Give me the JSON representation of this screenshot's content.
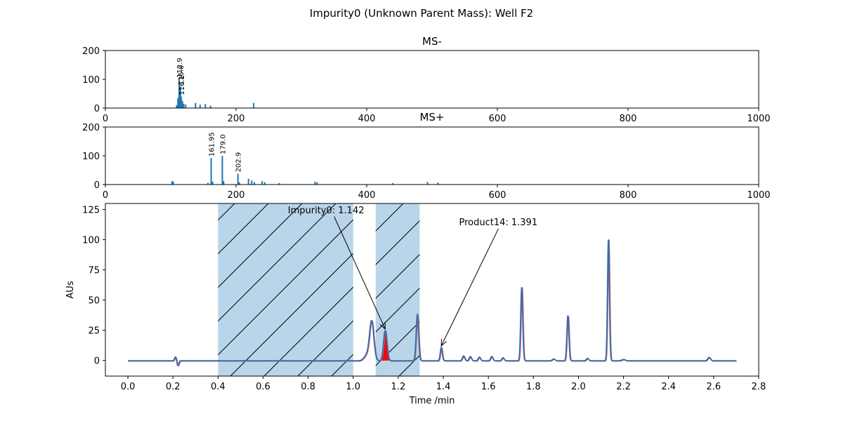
{
  "figure": {
    "title": "Impurity0 (Unknown Parent Mass): Well F2"
  },
  "colors": {
    "ms_bar": "#1f77b4",
    "trace": "#2f6fb0",
    "trace_shadow": "#d65f5f",
    "shade": "#b9d5ea",
    "peak_fill": "#ff0000"
  },
  "chart_data": [
    {
      "id": "ms-minus",
      "type": "bar",
      "title": "MS-",
      "xlim": [
        0,
        1000
      ],
      "ylim": [
        0,
        200
      ],
      "xticks": [
        0,
        200,
        400,
        600,
        800,
        1000
      ],
      "yticks": [
        0,
        100,
        200
      ],
      "bars": [
        {
          "x": 109,
          "y": 10
        },
        {
          "x": 111,
          "y": 35
        },
        {
          "x": 112.9,
          "y": 100
        },
        {
          "x": 114,
          "y": 55
        },
        {
          "x": 115.0,
          "y": 75
        },
        {
          "x": 116.1,
          "y": 40
        },
        {
          "x": 118,
          "y": 25
        },
        {
          "x": 120,
          "y": 15
        },
        {
          "x": 123,
          "y": 12
        },
        {
          "x": 138,
          "y": 18
        },
        {
          "x": 145,
          "y": 12
        },
        {
          "x": 153,
          "y": 14
        },
        {
          "x": 161,
          "y": 8
        },
        {
          "x": 227,
          "y": 18
        }
      ],
      "labels": [
        {
          "x": 112.9,
          "y": 100,
          "text": "112.9"
        },
        {
          "x": 115.0,
          "y": 75,
          "text": "115.0"
        },
        {
          "x": 116.1,
          "y": 40,
          "text": "116.1"
        }
      ]
    },
    {
      "id": "ms-plus",
      "type": "bar",
      "title": "MS+",
      "xlim": [
        0,
        1000
      ],
      "ylim": [
        0,
        200
      ],
      "xticks": [
        0,
        200,
        400,
        600,
        800,
        1000
      ],
      "yticks": [
        0,
        100,
        200
      ],
      "bars": [
        {
          "x": 102,
          "y": 12
        },
        {
          "x": 104,
          "y": 10
        },
        {
          "x": 157,
          "y": 6
        },
        {
          "x": 161.95,
          "y": 92
        },
        {
          "x": 164,
          "y": 10
        },
        {
          "x": 179.0,
          "y": 100
        },
        {
          "x": 181,
          "y": 12
        },
        {
          "x": 202.9,
          "y": 38
        },
        {
          "x": 205,
          "y": 8
        },
        {
          "x": 219,
          "y": 20
        },
        {
          "x": 224,
          "y": 14
        },
        {
          "x": 228,
          "y": 8
        },
        {
          "x": 240,
          "y": 12
        },
        {
          "x": 244,
          "y": 8
        },
        {
          "x": 266,
          "y": 5
        },
        {
          "x": 321,
          "y": 10
        },
        {
          "x": 324,
          "y": 8
        },
        {
          "x": 440,
          "y": 5
        },
        {
          "x": 493,
          "y": 9
        },
        {
          "x": 509,
          "y": 7
        }
      ],
      "labels": [
        {
          "x": 161.95,
          "y": 92,
          "text": "161.95"
        },
        {
          "x": 179.0,
          "y": 100,
          "text": "179.0"
        },
        {
          "x": 202.9,
          "y": 38,
          "text": "202.9"
        }
      ]
    },
    {
      "id": "chromatogram",
      "type": "line",
      "xlabel": "Time /min",
      "ylabel": "AUs",
      "xlim": [
        -0.1,
        2.8
      ],
      "ylim": [
        -13,
        130
      ],
      "xticks": [
        0.0,
        0.2,
        0.4,
        0.6,
        0.8,
        1.0,
        1.2,
        1.4,
        1.6,
        1.8,
        2.0,
        2.2,
        2.4,
        2.6,
        2.8
      ],
      "xtick_labels": [
        "0.0",
        "0.2",
        "0.4",
        "0.6",
        "0.8",
        "1.0",
        "1.2",
        "1.4",
        "1.6",
        "1.8",
        "2.0",
        "2.2",
        "2.4",
        "2.6",
        "2.8"
      ],
      "yticks": [
        0,
        25,
        50,
        75,
        100,
        125
      ],
      "shaded_regions": [
        [
          0.4,
          1.0
        ],
        [
          1.1,
          1.295
        ]
      ],
      "filled_peak": {
        "start": 1.115,
        "end": 1.165,
        "apex_time": 1.142
      },
      "baseline": -0.3,
      "peaks": [
        {
          "t": 0.211,
          "h": 3.2,
          "w": 0.004
        },
        {
          "t": 0.222,
          "h": -4.0,
          "w": 0.004
        },
        {
          "t": 1.06,
          "h": 4.5,
          "w": 0.012
        },
        {
          "t": 1.082,
          "h": 32.5,
          "w": 0.0095
        },
        {
          "t": 1.142,
          "h": 25.0,
          "w": 0.0075
        },
        {
          "t": 1.285,
          "h": 38.0,
          "w": 0.0055
        },
        {
          "t": 1.391,
          "h": 11.0,
          "w": 0.0045
        },
        {
          "t": 1.49,
          "h": 4.0,
          "w": 0.005
        },
        {
          "t": 1.52,
          "h": 3.5,
          "w": 0.005
        },
        {
          "t": 1.56,
          "h": 3.0,
          "w": 0.005
        },
        {
          "t": 1.615,
          "h": 3.5,
          "w": 0.005
        },
        {
          "t": 1.665,
          "h": 2.5,
          "w": 0.005
        },
        {
          "t": 1.748,
          "h": 61.0,
          "w": 0.0045
        },
        {
          "t": 1.89,
          "h": 1.5,
          "w": 0.006
        },
        {
          "t": 1.953,
          "h": 37.5,
          "w": 0.0045
        },
        {
          "t": 2.04,
          "h": 2.0,
          "w": 0.005
        },
        {
          "t": 2.133,
          "h": 100.5,
          "w": 0.0042
        },
        {
          "t": 2.2,
          "h": 1.0,
          "w": 0.008
        },
        {
          "t": 2.58,
          "h": 2.8,
          "w": 0.006
        }
      ],
      "annotations": [
        {
          "text": "Impurity0: 1.142",
          "label_x": 0.71,
          "label_y": 122,
          "tip_x": 1.142,
          "tip_y": 26
        },
        {
          "text": "Product14: 1.391",
          "label_x": 1.47,
          "label_y": 112,
          "tip_x": 1.391,
          "tip_y": 12
        }
      ]
    }
  ]
}
